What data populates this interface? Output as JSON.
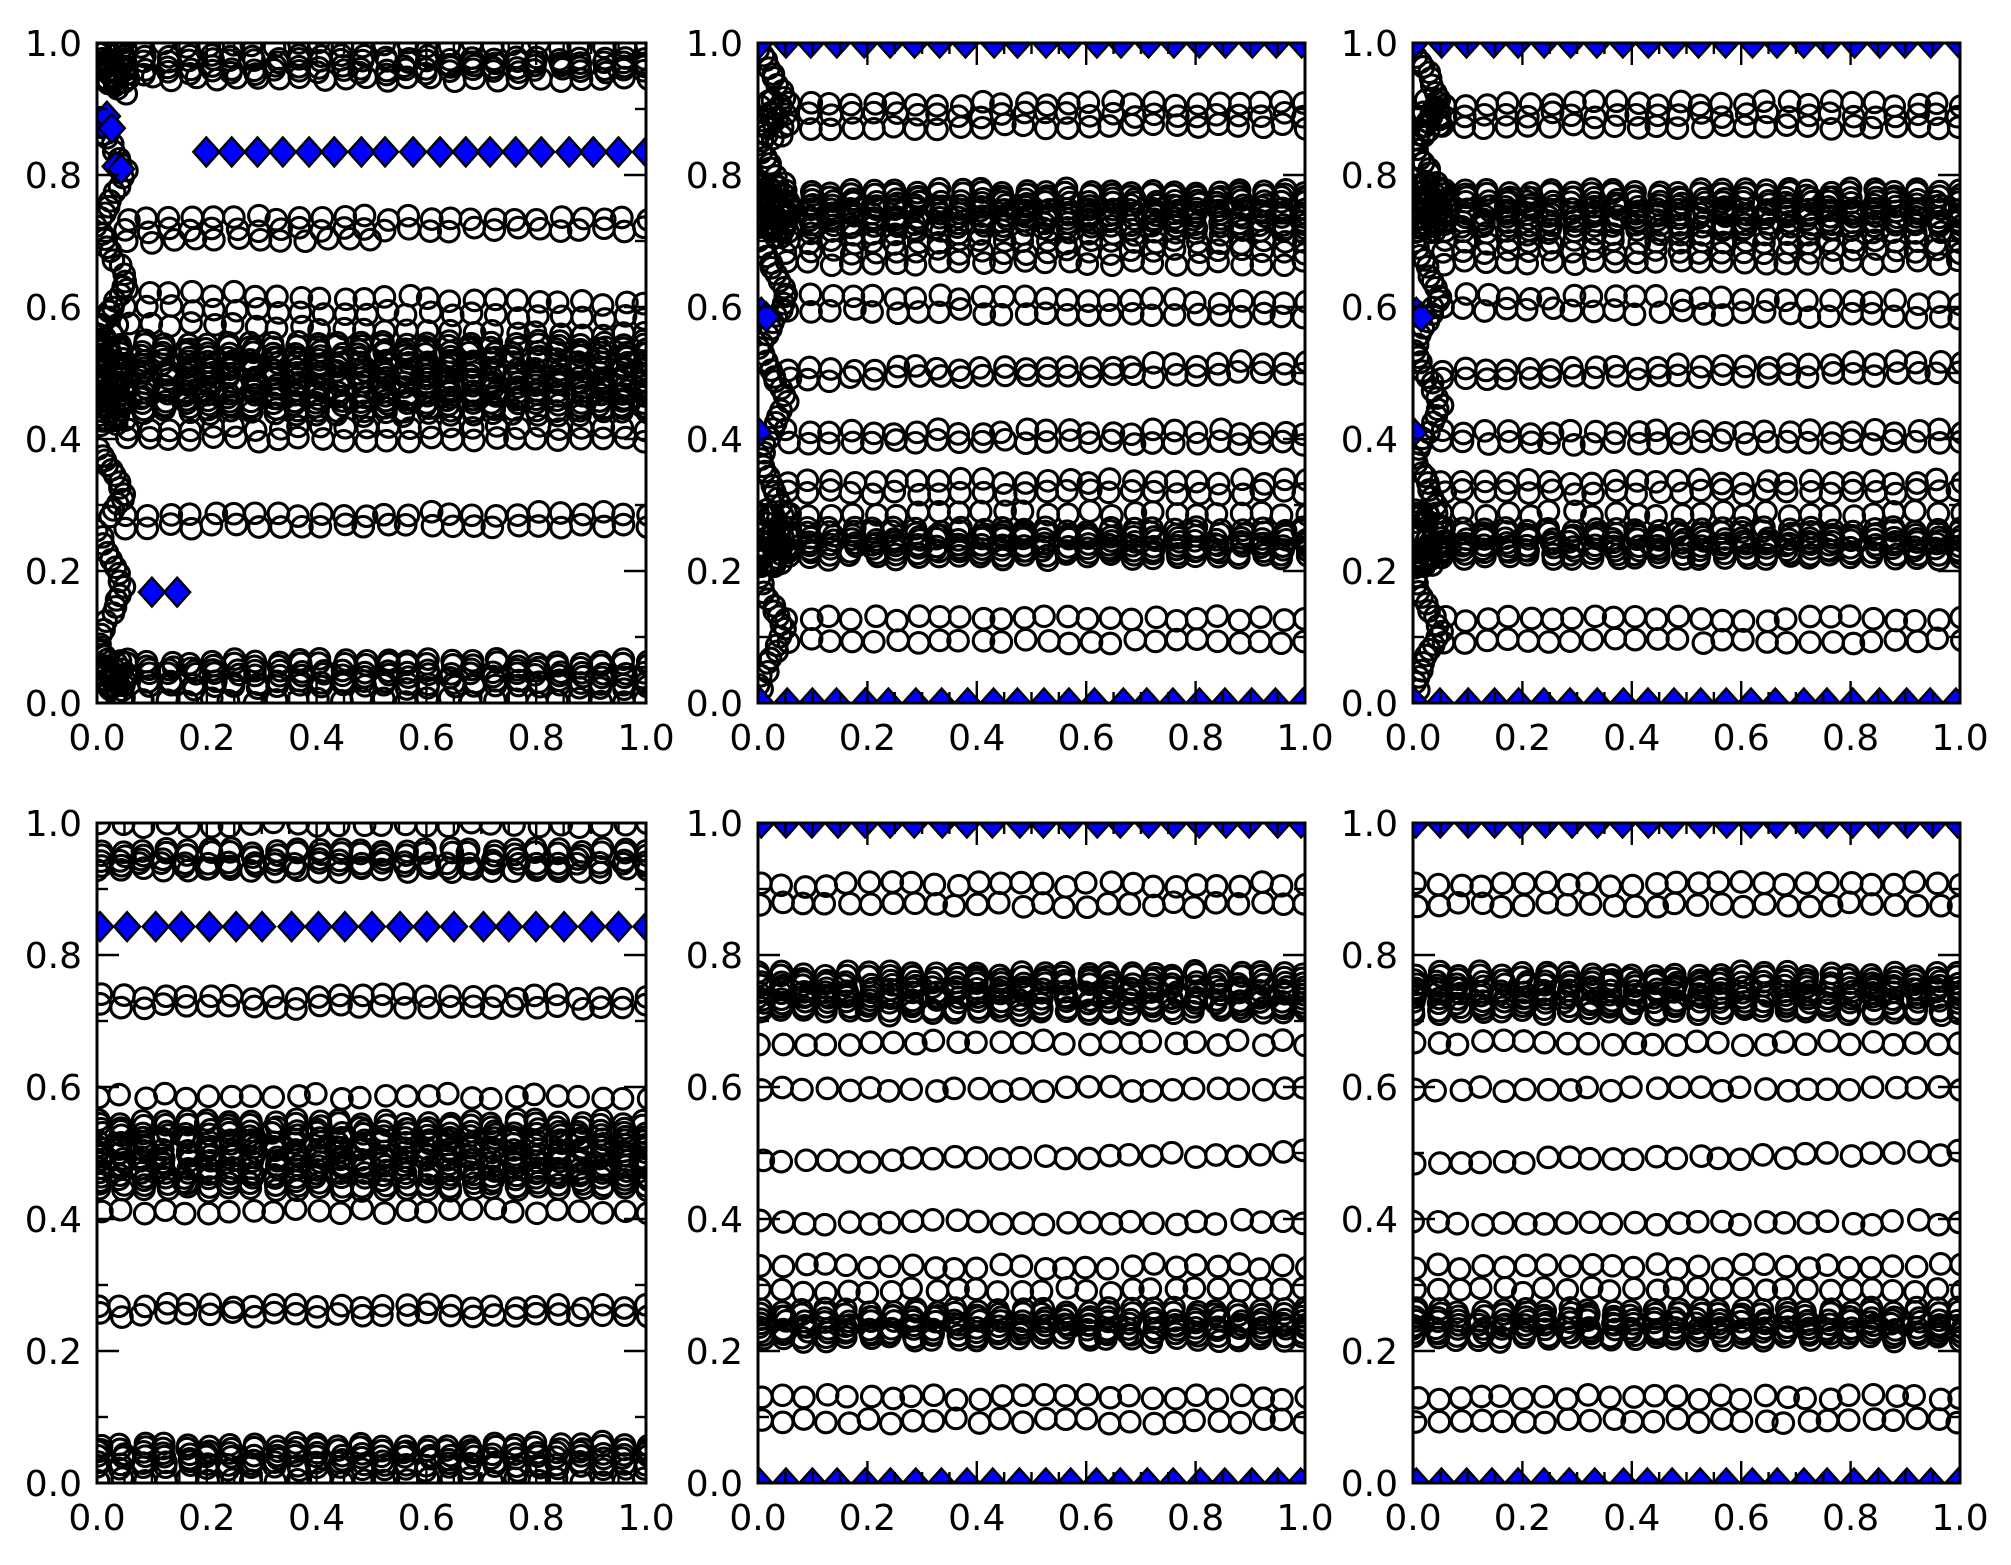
{
  "axes": {
    "xlim": [
      0,
      1
    ],
    "ylim": [
      0,
      1
    ],
    "x_major_values": [
      0.0,
      0.2,
      0.4,
      0.6,
      0.8,
      1.0
    ],
    "y_major_values": [
      0.0,
      0.2,
      0.4,
      0.6,
      0.8,
      1.0
    ],
    "xtick_labels": [
      "0.0",
      "0.2",
      "0.4",
      "0.6",
      "0.8",
      "1.0"
    ],
    "ytick_labels": [
      "0.0",
      "0.2",
      "0.4",
      "0.6",
      "0.8",
      "1.0"
    ],
    "x_minor_step": 0.05,
    "y_minor_step": 0.1,
    "grid": false,
    "legend": false
  },
  "style": {
    "circle_color": "#000000",
    "diamond_fill": "#0000ff",
    "diamond_edge": "#000000",
    "axis_color": "#000000",
    "background": "#ffffff"
  },
  "chart_data": [
    {
      "id": "top-left",
      "type": "scatter",
      "xlim": [
        0,
        1
      ],
      "ylim": [
        0,
        1
      ],
      "circle_bands": [
        {
          "rows": [
            0.997
          ],
          "x": [
            0.005,
            1.0
          ]
        },
        {
          "rows": [
            0.978,
            0.962
          ],
          "x": [
            0.01,
            1.0
          ],
          "bold": true
        },
        {
          "rows": [
            0.946
          ],
          "x": [
            0.02,
            1.0
          ]
        },
        {
          "rows": [
            0.735,
            0.717
          ],
          "x": [
            0.055,
            1.0
          ]
        },
        {
          "rows": [
            0.701
          ],
          "x": [
            0.055,
            0.5
          ]
        },
        {
          "rows": [
            0.623,
            0.6,
            0.576
          ],
          "x": [
            0.055,
            1.0
          ],
          "slope": -0.018
        },
        {
          "rows": [
            0.546,
            0.533,
            0.52,
            0.508,
            0.496,
            0.484,
            0.471,
            0.458,
            0.445
          ],
          "x": [
            0.005,
            1.0
          ],
          "bold": true
        },
        {
          "rows": [
            0.416,
            0.399
          ],
          "x": [
            0.055,
            1.0
          ]
        },
        {
          "rows": [
            0.286,
            0.268
          ],
          "x": [
            0.055,
            1.0
          ]
        },
        {
          "rows": [
            0.063,
            0.047,
            0.031
          ],
          "x": [
            0.055,
            1.0
          ],
          "bold": true
        },
        {
          "rows": [
            0.004
          ],
          "x": [
            0.005,
            1.0
          ]
        }
      ],
      "left_clusters": [
        {
          "style": "blob",
          "x": [
            0.0,
            0.055
          ],
          "y": [
            0.92,
            1.0
          ],
          "count": 30
        },
        {
          "style": "zigzag",
          "x": [
            0.002,
            0.052
          ],
          "y": [
            0.53,
            0.885
          ],
          "count": 36
        },
        {
          "style": "blob",
          "x": [
            0.0,
            0.052
          ],
          "y": [
            0.42,
            0.575
          ],
          "count": 46
        },
        {
          "style": "zigzag",
          "x": [
            0.002,
            0.05
          ],
          "y": [
            0.285,
            0.385
          ],
          "count": 13
        },
        {
          "style": "zigzag",
          "x": [
            0.002,
            0.05
          ],
          "y": [
            0.07,
            0.26
          ],
          "count": 19
        },
        {
          "style": "blob",
          "x": [
            0.0,
            0.05
          ],
          "y": [
            0.0,
            0.068
          ],
          "count": 24
        }
      ],
      "diamond_rows": [
        {
          "y": 0.835,
          "x": [
            0.197,
            1.0
          ],
          "count": 18
        }
      ],
      "diamond_points": [
        [
          0.008,
          0.878
        ],
        [
          0.018,
          0.889
        ],
        [
          0.027,
          0.871
        ],
        [
          0.034,
          0.813
        ],
        [
          0.044,
          0.809
        ],
        [
          0.1,
          0.168
        ],
        [
          0.146,
          0.168
        ]
      ]
    },
    {
      "id": "top-middle",
      "type": "scatter",
      "xlim": [
        0,
        1
      ],
      "ylim": [
        0,
        1
      ],
      "circle_bands": [
        {
          "rows": [
            0.908,
            0.891
          ],
          "x": [
            0.055,
            1.0
          ]
        },
        {
          "rows": [
            0.873
          ],
          "x": [
            0.055,
            1.0
          ]
        },
        {
          "rows": [
            0.776,
            0.763,
            0.751,
            0.739,
            0.727
          ],
          "x": [
            0.055,
            1.0
          ],
          "bold": true
        },
        {
          "rows": [
            0.713,
            0.699
          ],
          "x": [
            0.055,
            1.0
          ]
        },
        {
          "rows": [
            0.684,
            0.667
          ],
          "x": [
            0.055,
            1.0
          ]
        },
        {
          "rows": [
            0.618,
            0.597
          ],
          "x": [
            0.055,
            1.0
          ],
          "slope": -0.012
        },
        {
          "rows": [
            0.504,
            0.489
          ],
          "x": [
            0.055,
            1.0
          ],
          "slope": 0.012
        },
        {
          "rows": [
            0.411,
            0.395
          ],
          "x": [
            0.055,
            1.0
          ]
        },
        {
          "rows": [
            0.336,
            0.319
          ],
          "x": [
            0.055,
            1.0
          ]
        },
        {
          "rows": [
            0.287
          ],
          "x": [
            0.055,
            1.0
          ]
        },
        {
          "rows": [
            0.263,
            0.251,
            0.239,
            0.227
          ],
          "x": [
            0.055,
            1.0
          ],
          "bold": true
        },
        {
          "rows": [
            0.128
          ],
          "x": [
            0.055,
            1.0
          ]
        },
        {
          "rows": [
            0.094
          ],
          "x": [
            0.055,
            1.0
          ]
        }
      ],
      "left_clusters": [
        {
          "style": "zigzag",
          "x": [
            0.002,
            0.05
          ],
          "y": [
            0.8,
            0.99
          ],
          "count": 22
        },
        {
          "style": "blob",
          "x": [
            0.0,
            0.05
          ],
          "y": [
            0.855,
            0.915
          ],
          "count": 12
        },
        {
          "style": "blob",
          "x": [
            0.0,
            0.052
          ],
          "y": [
            0.705,
            0.79
          ],
          "count": 42
        },
        {
          "style": "zigzag",
          "x": [
            0.002,
            0.052
          ],
          "y": [
            0.3,
            0.7
          ],
          "count": 40
        },
        {
          "style": "blob",
          "x": [
            0.0,
            0.052
          ],
          "y": [
            0.205,
            0.295
          ],
          "count": 42
        },
        {
          "style": "zigzag",
          "x": [
            0.002,
            0.05
          ],
          "y": [
            0.02,
            0.19
          ],
          "count": 18
        }
      ],
      "diamond_rows": [
        {
          "y": 1.0,
          "x": [
            0.005,
            0.995
          ],
          "count": 22
        },
        {
          "y": 0.0,
          "x": [
            0.005,
            0.995
          ],
          "count": 22
        }
      ],
      "diamond_points": [
        [
          0.006,
          0.592
        ],
        [
          0.015,
          0.585
        ],
        [
          0.001,
          0.41
        ]
      ]
    },
    {
      "id": "top-right",
      "type": "scatter",
      "xlim": [
        0,
        1
      ],
      "ylim": [
        0,
        1
      ],
      "circle_bands": [
        {
          "rows": [
            0.908,
            0.891
          ],
          "x": [
            0.055,
            1.0
          ]
        },
        {
          "rows": [
            0.873
          ],
          "x": [
            0.055,
            1.0
          ]
        },
        {
          "rows": [
            0.776,
            0.763,
            0.751,
            0.739,
            0.727
          ],
          "x": [
            0.055,
            1.0
          ],
          "bold": true
        },
        {
          "rows": [
            0.713,
            0.699
          ],
          "x": [
            0.055,
            1.0
          ]
        },
        {
          "rows": [
            0.684,
            0.667
          ],
          "x": [
            0.055,
            1.0
          ]
        },
        {
          "rows": [
            0.618,
            0.597
          ],
          "x": [
            0.055,
            1.0
          ],
          "slope": -0.012
        },
        {
          "rows": [
            0.504,
            0.489
          ],
          "x": [
            0.055,
            1.0
          ],
          "slope": 0.012
        },
        {
          "rows": [
            0.411,
            0.395
          ],
          "x": [
            0.055,
            1.0
          ]
        },
        {
          "rows": [
            0.336,
            0.319
          ],
          "x": [
            0.055,
            1.0
          ]
        },
        {
          "rows": [
            0.287
          ],
          "x": [
            0.055,
            1.0
          ]
        },
        {
          "rows": [
            0.263,
            0.251,
            0.239,
            0.227
          ],
          "x": [
            0.055,
            1.0
          ],
          "bold": true
        },
        {
          "rows": [
            0.128
          ],
          "x": [
            0.055,
            1.0
          ]
        },
        {
          "rows": [
            0.094
          ],
          "x": [
            0.055,
            1.0
          ]
        }
      ],
      "left_clusters": [
        {
          "style": "zigzag",
          "x": [
            0.002,
            0.05
          ],
          "y": [
            0.8,
            0.99
          ],
          "count": 22
        },
        {
          "style": "blob",
          "x": [
            0.0,
            0.05
          ],
          "y": [
            0.855,
            0.915
          ],
          "count": 12
        },
        {
          "style": "blob",
          "x": [
            0.0,
            0.052
          ],
          "y": [
            0.705,
            0.79
          ],
          "count": 42
        },
        {
          "style": "zigzag",
          "x": [
            0.002,
            0.052
          ],
          "y": [
            0.3,
            0.7
          ],
          "count": 40
        },
        {
          "style": "blob",
          "x": [
            0.0,
            0.052
          ],
          "y": [
            0.205,
            0.295
          ],
          "count": 42
        },
        {
          "style": "zigzag",
          "x": [
            0.002,
            0.05
          ],
          "y": [
            0.02,
            0.19
          ],
          "count": 18
        }
      ],
      "diamond_rows": [
        {
          "y": 1.0,
          "x": [
            0.005,
            0.995
          ],
          "count": 22
        },
        {
          "y": 0.0,
          "x": [
            0.005,
            0.995
          ],
          "count": 22
        }
      ],
      "diamond_points": [
        [
          0.006,
          0.592
        ],
        [
          0.015,
          0.585
        ],
        [
          0.001,
          0.41
        ]
      ]
    },
    {
      "id": "bottom-left",
      "type": "scatter",
      "xlim": [
        0,
        1
      ],
      "ylim": [
        0,
        1
      ],
      "circle_bands": [
        {
          "rows": [
            0.997
          ],
          "x": [
            0.005,
            1.0
          ]
        },
        {
          "rows": [
            0.958,
            0.942
          ],
          "x": [
            0.005,
            1.0
          ],
          "bold": true
        },
        {
          "rows": [
            0.928
          ],
          "x": [
            0.005,
            1.0
          ]
        },
        {
          "rows": [
            0.737,
            0.722
          ],
          "x": [
            0.005,
            1.0
          ]
        },
        {
          "rows": [
            0.586
          ],
          "x": [
            0.005,
            1.0
          ]
        },
        {
          "rows": [
            0.547,
            0.533,
            0.519,
            0.506,
            0.493,
            0.48,
            0.466,
            0.452
          ],
          "x": [
            0.005,
            1.0
          ],
          "bold": true
        },
        {
          "rows": [
            0.412
          ],
          "x": [
            0.005,
            1.0
          ]
        },
        {
          "rows": [
            0.268,
            0.255
          ],
          "x": [
            0.005,
            1.0
          ]
        },
        {
          "rows": [
            0.059,
            0.044,
            0.029
          ],
          "x": [
            0.005,
            1.0
          ],
          "bold": true
        },
        {
          "rows": [
            0.004
          ],
          "x": [
            0.005,
            1.0
          ]
        }
      ],
      "left_clusters": [],
      "diamond_rows": [
        {
          "y": 0.843,
          "x": [
            0.005,
            1.0
          ],
          "count": 21
        }
      ],
      "diamond_points": []
    },
    {
      "id": "bottom-middle",
      "type": "scatter",
      "xlim": [
        0,
        1
      ],
      "ylim": [
        0,
        1
      ],
      "circle_bands": [
        {
          "rows": [
            0.907
          ],
          "x": [
            0.005,
            1.0
          ]
        },
        {
          "rows": [
            0.876
          ],
          "x": [
            0.005,
            1.0
          ]
        },
        {
          "rows": [
            0.772,
            0.759,
            0.746,
            0.733,
            0.719
          ],
          "x": [
            0.005,
            1.0
          ],
          "bold": true
        },
        {
          "rows": [
            0.667
          ],
          "x": [
            0.005,
            1.0
          ]
        },
        {
          "rows": [
            0.597
          ],
          "x": [
            0.005,
            1.0
          ]
        },
        {
          "rows": [
            0.486
          ],
          "x": [
            0.005,
            1.0
          ],
          "slope": 0.014
        },
        {
          "rows": [
            0.395
          ],
          "x": [
            0.005,
            1.0
          ]
        },
        {
          "rows": [
            0.328
          ],
          "x": [
            0.005,
            1.0
          ]
        },
        {
          "rows": [
            0.292
          ],
          "x": [
            0.005,
            1.0
          ]
        },
        {
          "rows": [
            0.262,
            0.249,
            0.236,
            0.224
          ],
          "x": [
            0.005,
            1.0
          ],
          "bold": true
        },
        {
          "rows": [
            0.13
          ],
          "x": [
            0.005,
            1.0
          ]
        },
        {
          "rows": [
            0.094
          ],
          "x": [
            0.005,
            1.0
          ]
        }
      ],
      "left_clusters": [],
      "diamond_rows": [
        {
          "y": 1.0,
          "x": [
            0.005,
            0.995
          ],
          "count": 22
        },
        {
          "y": 0.0,
          "x": [
            0.005,
            0.995
          ],
          "count": 22
        }
      ],
      "diamond_points": []
    },
    {
      "id": "bottom-right",
      "type": "scatter",
      "xlim": [
        0,
        1
      ],
      "ylim": [
        0,
        1
      ],
      "circle_bands": [
        {
          "rows": [
            0.907
          ],
          "x": [
            0.005,
            1.0
          ]
        },
        {
          "rows": [
            0.876
          ],
          "x": [
            0.005,
            1.0
          ]
        },
        {
          "rows": [
            0.772,
            0.759,
            0.746,
            0.733,
            0.719
          ],
          "x": [
            0.005,
            1.0
          ],
          "bold": true
        },
        {
          "rows": [
            0.667
          ],
          "x": [
            0.005,
            1.0
          ]
        },
        {
          "rows": [
            0.597
          ],
          "x": [
            0.005,
            1.0
          ]
        },
        {
          "rows": [
            0.486
          ],
          "x": [
            0.005,
            1.0
          ],
          "slope": 0.014
        },
        {
          "rows": [
            0.395
          ],
          "x": [
            0.005,
            1.0
          ]
        },
        {
          "rows": [
            0.328
          ],
          "x": [
            0.005,
            1.0
          ]
        },
        {
          "rows": [
            0.292
          ],
          "x": [
            0.005,
            1.0
          ]
        },
        {
          "rows": [
            0.262,
            0.249,
            0.236,
            0.224
          ],
          "x": [
            0.005,
            1.0
          ],
          "bold": true
        },
        {
          "rows": [
            0.13
          ],
          "x": [
            0.005,
            1.0
          ]
        },
        {
          "rows": [
            0.094
          ],
          "x": [
            0.005,
            1.0
          ]
        }
      ],
      "left_clusters": [],
      "diamond_rows": [
        {
          "y": 1.0,
          "x": [
            0.005,
            0.995
          ],
          "count": 22
        },
        {
          "y": 0.0,
          "x": [
            0.005,
            0.995
          ],
          "count": 22
        }
      ],
      "diamond_points": []
    }
  ]
}
